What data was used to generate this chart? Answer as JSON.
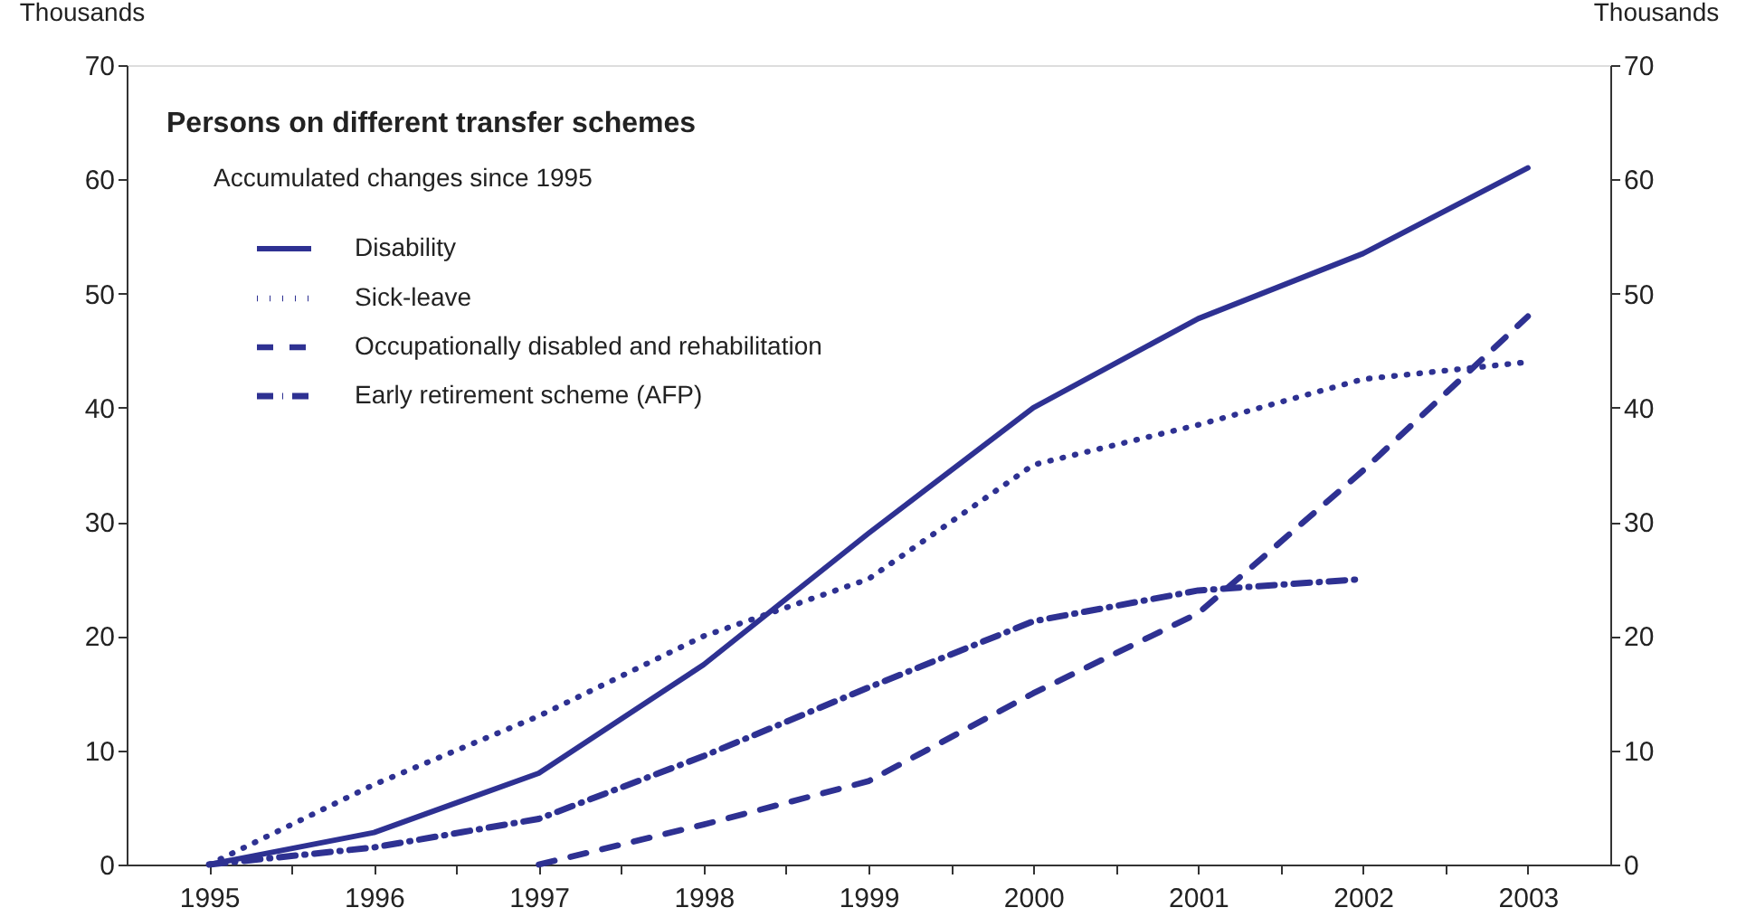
{
  "chart_data": {
    "type": "line",
    "title": "Persons on different transfer schemes",
    "subtitle": "Accumulated changes since 1995",
    "ylabel": "Thousands",
    "y2label": "Thousands",
    "x": [
      1995,
      1996,
      1997,
      1998,
      1999,
      2000,
      2001,
      2002,
      2003
    ],
    "xlim": [
      1994.5,
      2003.5
    ],
    "xticks": [
      1995,
      {
        "value": 1995.5,
        "label": null
      },
      1996,
      {
        "value": 1996.5,
        "label": null
      },
      1997,
      {
        "value": 1997.5,
        "label": null
      },
      1998,
      {
        "value": 1998.5,
        "label": null
      },
      1999,
      {
        "value": 1999.5,
        "label": null
      },
      2000,
      {
        "value": 2000.5,
        "label": null
      },
      2001,
      {
        "value": 2001.5,
        "label": null
      },
      2002,
      {
        "value": 2002.5,
        "label": null
      },
      2003
    ],
    "ylim": [
      0,
      70
    ],
    "yticks": [
      0,
      10,
      20,
      30,
      40,
      50,
      60,
      70
    ],
    "y2lim": [
      0,
      70
    ],
    "y2ticks": [
      0,
      10,
      20,
      30,
      40,
      50,
      60,
      70
    ],
    "grid": false,
    "legend": "top left",
    "marker": "none",
    "series": [
      {
        "name": "Disability",
        "color": "#2e3192",
        "line_style": "solid",
        "values": [
          0,
          2.8,
          8,
          17.5,
          29,
          40,
          47.8,
          53.5,
          61
        ]
      },
      {
        "name": "Sick-leave",
        "color": "#2e3192",
        "line_style": "dotted",
        "values": [
          0,
          7,
          13,
          20,
          25,
          35,
          38.5,
          42.5,
          44
        ]
      },
      {
        "name": "Occupationally disabled and rehabilitation",
        "color": "#2e3192",
        "line_style": "dashed",
        "values": [
          null,
          null,
          0,
          3.5,
          7.3,
          15,
          22,
          34.5,
          48
        ]
      },
      {
        "name": "Early retirement scheme (AFP)",
        "color": "#2e3192",
        "line_style": "dashdot",
        "values": [
          0,
          1.5,
          4,
          9.5,
          15.5,
          21.3,
          24,
          25,
          null
        ]
      }
    ]
  }
}
